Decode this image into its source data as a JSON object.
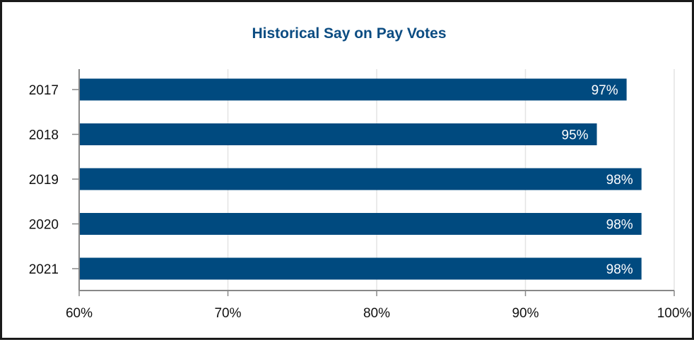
{
  "chart_data": {
    "type": "bar",
    "orientation": "horizontal",
    "title": "Historical Say on Pay Votes",
    "categories": [
      "2017",
      "2018",
      "2019",
      "2020",
      "2021"
    ],
    "values": [
      96.8,
      94.8,
      97.8,
      97.8,
      97.8
    ],
    "data_labels": [
      "97%",
      "95%",
      "98%",
      "98%",
      "98%"
    ],
    "xlim": [
      60,
      100
    ],
    "x_ticks": [
      60,
      70,
      80,
      90,
      100
    ],
    "x_tick_labels": [
      "60%",
      "70%",
      "80%",
      "90%",
      "100%"
    ],
    "xlabel": "",
    "ylabel": "",
    "grid": true,
    "legend": "none"
  },
  "colors": {
    "bar": "#004A7F",
    "title": "#0B4C82",
    "axis": "#888888",
    "grid": "#E4E4E4"
  }
}
